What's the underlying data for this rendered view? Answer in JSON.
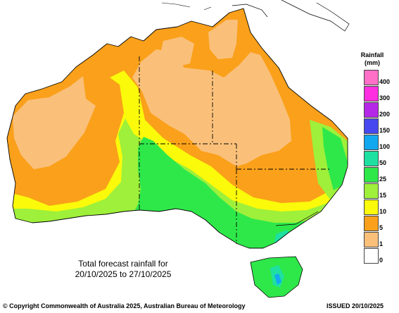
{
  "map": {
    "title_line1": "Total forecast rainfall for",
    "title_line2": "20/10/2025 to 27/10/2025"
  },
  "legend": {
    "title_line1": "Rainfall",
    "title_line2": "(mm)",
    "levels": [
      {
        "label": "400",
        "color": "#ff6ec7"
      },
      {
        "label": "300",
        "color": "#ff2ee0"
      },
      {
        "label": "200",
        "color": "#b528e8"
      },
      {
        "label": "150",
        "color": "#4848f0"
      },
      {
        "label": "100",
        "color": "#12a8f0"
      },
      {
        "label": "50",
        "color": "#1ee0a0"
      },
      {
        "label": "25",
        "color": "#2ee84a"
      },
      {
        "label": "15",
        "color": "#9ef03a"
      },
      {
        "label": "10",
        "color": "#fafa0a"
      },
      {
        "label": "5",
        "color": "#faa01a"
      },
      {
        "label": "1",
        "color": "#fac07a"
      },
      {
        "label": "0",
        "color": "#ffffff"
      }
    ]
  },
  "footer": {
    "copyright": "© Copyright Commonwealth of Australia 2025, Australian Bureau of Meteorology",
    "issued": "ISSUED 20/10/2025"
  }
}
